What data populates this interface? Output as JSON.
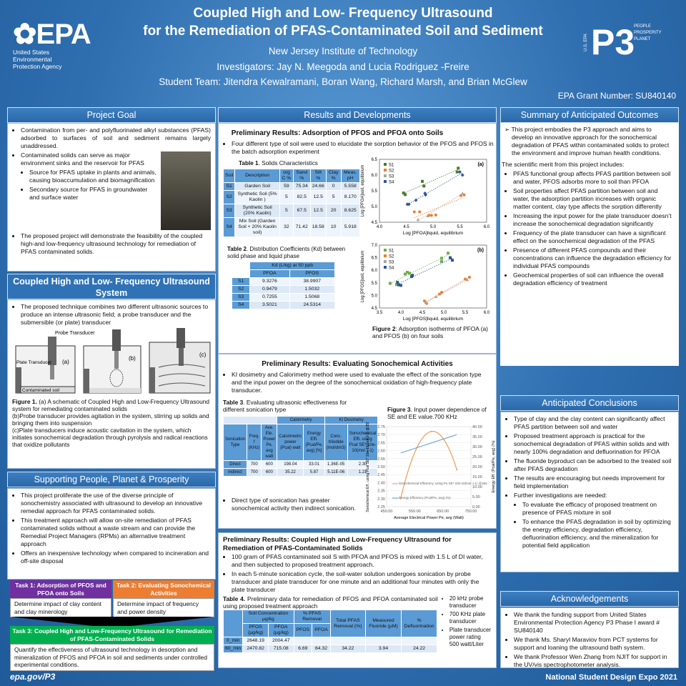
{
  "header": {
    "title_line1": "Coupled High and Low- Frequency Ultrasound",
    "title_line2": "for the Remediation of PFAS-Contaminated Soil and Sediment",
    "institution": "New Jersey Institute of Technology",
    "investigators": "Investigators: Jay N. Meegoda and Lucia Rodriguez -Freire",
    "students": "Student Team: Jitendra Kewalramani, Boran Wang, Richard Marsh, and Brian McGlew",
    "grant": "EPA Grant Number: SU840140"
  },
  "logos": {
    "epa": "EPA",
    "epa_sub": [
      "United States",
      "Environmental",
      "Protection Agency"
    ],
    "p3": "P3",
    "p3_side": "U.S. EPA",
    "p3_words": [
      "PEOPLE",
      "PROSPERITY",
      "PLANET"
    ]
  },
  "left": {
    "goal_head": "Project Goal",
    "goal_items": [
      "Contamination from per- and polyfluorinated alkyl substances (PFAS) adsorbed to surfaces of soil and sediment remains largely unaddressed.",
      "Contaminated solids can serve as major environment sinks and the reservoir for PFAS"
    ],
    "goal_sub": [
      "Source for PFAS uptake in plants and animals, causing bioaccumulation and biomagnification",
      "Secondary source for PFAS in groundwater and surface water"
    ],
    "goal_last": "The proposed project will demonstrate the feasibility of the coupled high-and low-frequency ultrasound technology for remediation of PFAS contaminated solids.",
    "system_head": "Coupled High and Low- Frequency Ultrasound System",
    "system_text": "The proposed technique combines two different ultrasonic sources to produce an intense ultrasonic field; a probe transducer and the submersible (or plate) transducer",
    "fig1_labels": {
      "probe": "Probe Transducer",
      "plate": "Plate Transducer",
      "soil": "Contaminated soil",
      "a": "(a)",
      "b": "(b)",
      "c": "(c)"
    },
    "fig1_caption_bold": "Figure 1.",
    "fig1_caption": " (a) A schematic of Coupled High and Low-Frequency Ultrasound system for remediating contaminated solids",
    "fig1_b": "(b)Probe transducer provides agitation in the system, stirring up solids and bringing them into suspension",
    "fig1_c": "(c)Plate transducers induce acoustic cavitation in the system, which initiates sonochemical degradation through pyrolysis and radical reactions that oxidize pollutants",
    "support_head": "Supporting People, Planet & Prosperity",
    "support_items": [
      "This project proliferate the use of the diverse principle of sonochemistry associated with ultrasound to develop an innovative remedial approach for PFAS contaminated solids.",
      "This treatment approach will allow on-site remediation of PFAS contaminated solids without a waste stream and can provide the Remedial Project Managers (RPMs) an alternative treatment approach",
      "Offers an inexpensive technology when compared to incineration and off-site disposal"
    ],
    "tasks": [
      {
        "title": "Task 1: Adsorption of PFOS and PFOA onto Soils",
        "body": "Determine impact of clay content and clay minerology",
        "color": "#7030a0"
      },
      {
        "title": "Task 2: Evaluating Sonochemical Activities",
        "body": "Determine impact of frequency and power density",
        "color": "#ed7d31"
      },
      {
        "title": "Task 3: Coupled High and Low-Frequency Ultrasound for Remediation of PFAS-Contaminated Solids",
        "body": "Quantify the effectiveness of ultrasound technology in desorption and mineralization of PFOS and PFOA in soil and sediments under controlled experimental conditions.",
        "color": "#00b050"
      }
    ]
  },
  "middle": {
    "head": "Results and Developments",
    "adsorption": {
      "title": "Preliminary Results: Adsorption of PFOS and PFOA onto Soils",
      "text": "Four different type of soil were used to elucidate the sorption behavior of the PFOS and PFOS in the batch adsorption experiment",
      "table1_title_bold": "Table 1",
      "table1_title": ". Solids Characteristics",
      "table1_headers": [
        "Soil",
        "Description",
        "org C %",
        "Sand %",
        "Silt %",
        "Clay %",
        "Meas. pH"
      ],
      "table1_rows": [
        [
          "S1",
          "Garden Soil",
          "59",
          "75.34",
          "24.66",
          "0",
          "5.558"
        ],
        [
          "S2",
          "Synthetic Soil (5% Kaolin )",
          "5",
          "82.5",
          "12.5",
          "5",
          "8.170"
        ],
        [
          "S3",
          "Synthetic Soil (20% Kaolin)",
          "5",
          "67.5",
          "12.5",
          "20",
          "8.625"
        ],
        [
          "S4",
          "Mix Soil (Garden Soil + 20% Kaolin soil)",
          "32",
          "71.42",
          "18.58",
          "10",
          "5.918"
        ]
      ],
      "table2_title_bold": "Table 2",
      "table2_title": ". Distribution Coefficients (Kd) between solid phase and liquid phase",
      "table2_group": "Kd (L/kg) at 50 ppb",
      "table2_headers": [
        "PFOA",
        "PFOS"
      ],
      "table2_rows": [
        [
          "S1",
          "9.3276",
          "38.9907"
        ],
        [
          "S2",
          "0.9479",
          "1.5032"
        ],
        [
          "S3",
          "0.7255",
          "1.5068"
        ],
        [
          "S4",
          "3.5021",
          "24.5314"
        ]
      ],
      "fig2_caption_bold": "Figure 2",
      "fig2_caption": ": Adsorption isotherms of PFOA (a) and PFOS (b) on four soils"
    },
    "sono": {
      "title": "Preliminary Results: Evaluating Sonochemical Activities",
      "text": "KI dosimetry and Calorimetry method were used to evaluate the effect of the sonication type and the input power on the degree of the sonochemical oxidation of high-frequency plate transducer.",
      "table3_title_bold": "Table 3",
      "table3_title": ". Evaluating ultrasonic effectiveness for different sonication type",
      "table3_groups": [
        "Calorimetry",
        "KI Dosimetry"
      ],
      "table3_headers": [
        "Sonication Type",
        "Freq. f (KHz)",
        "Ave. Ele. Power Pe, avg watt",
        "Calorimetric power (Pcal) watt",
        "Energy Effi. (Pcal/Pe, avg) [%]",
        "Conc. triiodide (mol/dm3)",
        "Sonochemical Effi. using Pcal SE* 10e-10(mol J-1)"
      ],
      "table3_rows": [
        [
          "Direct",
          "700",
          "600",
          "198.04",
          "33.01",
          "1.36E-05",
          "2.30"
        ],
        [
          "Indirect",
          "700",
          "600",
          "35.22",
          "5.87",
          "5.11E-06",
          "1.21"
        ]
      ],
      "fig3_title_bold": "Figure 3",
      "fig3_title": ". Input power dependence of SE and EE value.700 KHz",
      "bullet": "Direct type of sonication has greater sonochemical activity then indirect sonication."
    },
    "coupled": {
      "title": "Preliminary Results: Coupled High and Low-Frequency Ultrasound for Remediation of PFAS-Contaminated Solids",
      "items": [
        "100 gram of PFAS contaminated soil S with PFOA and PFOS  is mixed with 1.5 L of DI water, and then subjected to proposed treatment approach.",
        "In each 5-minute sonication cycle, the soil-water solution undergoes sonication by probe transducer and plate transducer for one minute and an additional four minutes with only the plate transducer"
      ],
      "table4_title_bold": "Table 4.",
      "table4_title": " Preliminary data for remediation of PFOS and PFOA contaminated soil using proposed treatment approach",
      "table4_groups": [
        "Soil Concentration µg/kg",
        "% PFAS Removal",
        "Total PFAS Removal (%)",
        "Measured Fluoride (µM)",
        "% Defluorination"
      ],
      "table4_headers": [
        "PFOS (µg/kg)",
        "PFOA (µg/kg)",
        "PFOS",
        "PFOA"
      ],
      "table4_rows": [
        [
          "0_min",
          "2648.19",
          "2004.47",
          "",
          "",
          "",
          "",
          ""
        ],
        [
          "60_min",
          "2470.82",
          "715.08",
          "6.69",
          "64.32",
          "34.22",
          "3.94",
          "24.22"
        ]
      ],
      "side_items": [
        "20 kHz probe transducer",
        "700 KHz plate transducer",
        "Plate transducer power rating 500 watt/Liter"
      ]
    }
  },
  "right": {
    "summary_head": "Summary of  Anticipated Outcomes",
    "summary_lead": "This project embodies the P3 approach and aims to develop an innovative approach for the sonochemical degradation of PFAS within contaminated solids to protect the environment and improve human health conditions.",
    "merit_intro": "The scientific merit from this project includes:",
    "merit_items": [
      "PFAS functional group affects PFAS partition between soil and water, PFOS adsorbs more to soil than PFOA",
      "Soil properties affect PFAS partition between soil and water, the adsorption partition increases with organic matter content, clay type affects the sorption differently",
      "Increasing the input power for the plate transducer doesn’t increase the sonochemical degradation significantly",
      "Frequency of the plate transducer can have a significant effect on the sonochemical degradation of the PFAS",
      "Presence of different PFAS compounds and their concentrations can influence the degradation efficiency for individual PFAS compounds",
      "Geochemical properties of soil can influence the overall degradation efficiency of treatment"
    ],
    "concl_head": "Anticipated Conclusions",
    "concl_items": [
      "Type of clay and the clay content can significantly affect PFAS partition between soil and water",
      "Proposed treatment approach is practical for the sonochemical degradation of PFAS within solids and with nearly 100% degradation and defluorination for PFOA",
      "The fluoride byproduct can be adsorbed to the treated soil after PFAS degradation",
      "The results are encouraging but needs improvement for field implementation",
      "Further investigations are needed:"
    ],
    "concl_sub": [
      "To evaluate the efficacy of proposed treatment on presence of PFAS mixture in soil",
      "To enhance the PFAS degradation in soil by optimizing the energy efficiency, degradation efficiency, defluorination efficiency, and the mineralization for potential field application"
    ],
    "ack_head": "Acknowledgements",
    "ack_items": [
      "We thank the funding support from United States Environmental Protection Agency P3 Phase I award # SU840140",
      "We thank Ms. Sharyl Maraviov from PCT systems for support and loaning the ultrasound bath system.",
      "We thank  Professor Wen Zhang from NJIT for support in the UV/vis spectrophotometer analysis."
    ]
  },
  "footer": {
    "left": "epa.gov/P3",
    "right": "National Student Design Expo 2021"
  },
  "chart_data": [
    {
      "type": "scatter",
      "panel_label": "(a)",
      "xlabel": "Log [PFOA]liquid, equilibrium",
      "ylabel": "Log [PFOA]soil, equilibrium",
      "xlim": [
        4.0,
        6.0
      ],
      "ylim": [
        4.5,
        6.5
      ],
      "xticks": [
        "4.0",
        "4.5",
        "5.0",
        "5.5",
        "6.0"
      ],
      "yticks": [
        "4.5",
        "5.0",
        "5.5",
        "6.0",
        "6.5"
      ],
      "legend": "top-left",
      "trendlines": true,
      "series": [
        {
          "name": "S1",
          "color": "#4a7a2c",
          "marker": "square",
          "points": [
            [
              4.45,
              5.43
            ],
            [
              4.48,
              5.38
            ],
            [
              4.8,
              5.8
            ],
            [
              4.83,
              5.65
            ],
            [
              5.45,
              6.1
            ],
            [
              5.47,
              6.22
            ]
          ]
        },
        {
          "name": "S2",
          "color": "#ed7d31",
          "marker": "circle",
          "points": [
            [
              4.65,
              4.83
            ],
            [
              4.75,
              4.83
            ],
            [
              4.92,
              4.72
            ],
            [
              4.97,
              4.72
            ],
            [
              5.05,
              4.73
            ],
            [
              5.52,
              5.35
            ],
            [
              5.58,
              5.37
            ]
          ]
        },
        {
          "name": "S3",
          "color": "#a5a5a5",
          "marker": "triangle",
          "points": [
            [
              4.72,
              4.58
            ],
            [
              4.9,
              4.7
            ],
            [
              5.55,
              5.42
            ]
          ]
        },
        {
          "name": "S4",
          "color": "#2f5597",
          "marker": "diamond",
          "points": [
            [
              4.52,
              5.07
            ],
            [
              4.55,
              5.07
            ],
            [
              4.68,
              5.2
            ],
            [
              4.85,
              5.42
            ],
            [
              4.86,
              5.37
            ],
            [
              5.5,
              6.1
            ],
            [
              5.55,
              6.0
            ]
          ]
        }
      ]
    },
    {
      "type": "scatter",
      "panel_label": "(b)",
      "xlabel": "Log [PFOS]liquid, equilibrium",
      "ylabel": "Log [PFOS]soil, equilibrium",
      "xlim": [
        3.5,
        6.0
      ],
      "ylim": [
        4.5,
        7.0
      ],
      "xticks": [
        "3.5",
        "4.0",
        "4.5",
        "5.0",
        "5.5",
        "6.0"
      ],
      "yticks": [
        "4.5",
        "5.0",
        "5.5",
        "6.0",
        "6.5",
        "7.0"
      ],
      "legend": "top-left",
      "trendlines": true,
      "series": [
        {
          "name": "S1",
          "color": "#70ad47",
          "marker": "square",
          "points": [
            [
              3.75,
              5.48
            ],
            [
              3.9,
              5.43
            ],
            [
              4.1,
              5.85
            ],
            [
              4.15,
              5.92
            ],
            [
              4.2,
              5.88
            ],
            [
              4.95,
              6.35
            ],
            [
              4.95,
              6.48
            ],
            [
              5.1,
              6.68
            ]
          ]
        },
        {
          "name": "S2",
          "color": "#ed7d31",
          "marker": "circle",
          "points": [
            [
              4.55,
              4.78
            ],
            [
              4.6,
              4.68
            ],
            [
              4.9,
              5.05
            ],
            [
              4.95,
              5.12
            ],
            [
              5.5,
              5.65
            ],
            [
              5.6,
              5.72
            ]
          ]
        },
        {
          "name": "S3",
          "color": "#a5a5a5",
          "marker": "triangle",
          "points": [
            [
              4.58,
              4.72
            ],
            [
              4.82,
              4.95
            ],
            [
              5.55,
              5.62
            ]
          ]
        },
        {
          "name": "S4",
          "color": "#2f5597",
          "marker": "square",
          "points": [
            [
              3.92,
              5.52
            ],
            [
              3.95,
              5.42
            ],
            [
              4.0,
              5.4
            ],
            [
              4.25,
              5.75
            ],
            [
              4.27,
              5.8
            ],
            [
              5.15,
              6.5
            ],
            [
              5.2,
              6.4
            ]
          ]
        }
      ]
    },
    {
      "type": "line",
      "xlabel": "Average Electrical Power Pe, avg (Watt)",
      "ylabel": "Sonochemical Eff., using Pcal SE* 10e-10(mol J-1) @355",
      "y2label": "Energy Eff. (Pcal/Pe, avg) (%)",
      "xlim": [
        450,
        750
      ],
      "ylim": [
        2.25,
        2.75
      ],
      "y2lim": [
        0,
        40
      ],
      "xticks": [
        "450.00",
        "550.00",
        "650.00",
        "750.00"
      ],
      "yticks": [
        "2.25",
        "2.30",
        "2.35",
        "2.40",
        "2.45",
        "2.50",
        "2.55",
        "2.60",
        "2.65",
        "2.70",
        "2.75"
      ],
      "y2ticks": [
        "0.00",
        "5.00",
        "10.00",
        "15.00",
        "20.00",
        "25.00",
        "30.00",
        "35.00",
        "40.00"
      ],
      "legend": "bottom-left",
      "series": [
        {
          "name": "Sonochemical Efficiency, using Pu SE* 10e-10(mol J-1) @355",
          "color": "#ed9c55",
          "axis": "left",
          "x": [
            500,
            610,
            700
          ],
          "y": [
            2.3,
            2.72,
            2.48
          ]
        },
        {
          "name": "Energy Efficiency  (Pcal/Pe, avg) (%)",
          "color": "#5b9bd5",
          "axis": "right",
          "x": [
            500,
            700
          ],
          "y": [
            26.8,
            36.0
          ]
        }
      ]
    }
  ]
}
